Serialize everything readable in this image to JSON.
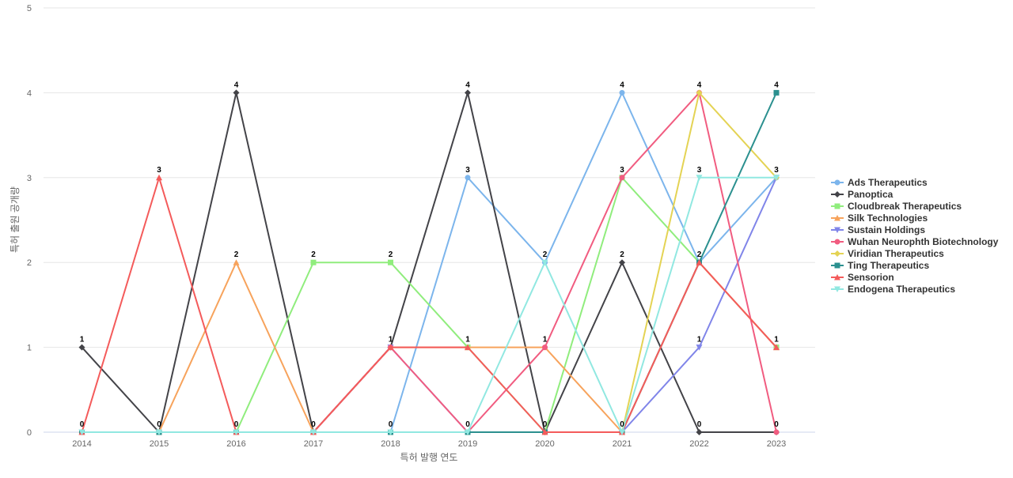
{
  "chart_data": {
    "type": "line",
    "title": "",
    "xlabel": "특허 발행 연도",
    "ylabel": "특허 출원 공개량",
    "ylim": [
      0,
      5
    ],
    "y_ticks": [
      "0",
      "1",
      "2",
      "3",
      "4",
      "5"
    ],
    "categories": [
      "2014",
      "2015",
      "2016",
      "2017",
      "2018",
      "2019",
      "2020",
      "2021",
      "2022",
      "2023"
    ],
    "grid": true,
    "legend_position": "right",
    "series": [
      {
        "name": "Ads Therapeutics",
        "color": "#7cb5ec",
        "marker": "circle",
        "values": [
          0,
          0,
          0,
          0,
          0,
          3,
          2,
          4,
          2,
          3
        ]
      },
      {
        "name": "Panoptica",
        "color": "#434348",
        "marker": "diamond",
        "values": [
          1,
          0,
          4,
          0,
          1,
          4,
          0,
          2,
          0,
          0
        ]
      },
      {
        "name": "Cloudbreak Therapeutics",
        "color": "#90ed7d",
        "marker": "square",
        "values": [
          0,
          0,
          0,
          2,
          2,
          1,
          0,
          3,
          2,
          1
        ]
      },
      {
        "name": "Silk Technologies",
        "color": "#f7a35c",
        "marker": "triangle",
        "values": [
          0,
          0,
          2,
          0,
          1,
          1,
          1,
          0,
          2,
          1
        ]
      },
      {
        "name": "Sustain Holdings",
        "color": "#8085e9",
        "marker": "triangle-down",
        "values": [
          0,
          0,
          0,
          0,
          1,
          0,
          0,
          0,
          1,
          3
        ]
      },
      {
        "name": "Wuhan Neurophth Biotechnology",
        "color": "#f15c80",
        "marker": "circle",
        "values": [
          0,
          0,
          0,
          0,
          1,
          0,
          1,
          3,
          4,
          0
        ]
      },
      {
        "name": "Viridian Therapeutics",
        "color": "#e4d354",
        "marker": "diamond",
        "values": [
          0,
          0,
          0,
          0,
          0,
          0,
          0,
          0,
          4,
          3
        ]
      },
      {
        "name": "Ting Therapeutics",
        "color": "#2b908f",
        "marker": "square",
        "values": [
          0,
          0,
          0,
          0,
          0,
          0,
          0,
          0,
          2,
          4
        ]
      },
      {
        "name": "Sensorion",
        "color": "#f45b5b",
        "marker": "triangle",
        "values": [
          0,
          3,
          0,
          0,
          1,
          1,
          0,
          0,
          2,
          1
        ]
      },
      {
        "name": "Endogena Therapeutics",
        "color": "#91e8e1",
        "marker": "triangle-down",
        "values": [
          0,
          0,
          0,
          0,
          0,
          0,
          2,
          0,
          3,
          3
        ]
      }
    ],
    "data_labels": [
      {
        "x": "2014",
        "y": 1,
        "text": "1"
      },
      {
        "x": "2014",
        "y": 0,
        "text": "0"
      },
      {
        "x": "2015",
        "y": 3,
        "text": "3"
      },
      {
        "x": "2015",
        "y": 0,
        "text": "0"
      },
      {
        "x": "2016",
        "y": 4,
        "text": "4"
      },
      {
        "x": "2016",
        "y": 2,
        "text": "2"
      },
      {
        "x": "2016",
        "y": 0,
        "text": "0"
      },
      {
        "x": "2017",
        "y": 2,
        "text": "2"
      },
      {
        "x": "2017",
        "y": 0,
        "text": "0"
      },
      {
        "x": "2018",
        "y": 2,
        "text": "2"
      },
      {
        "x": "2018",
        "y": 1,
        "text": "1"
      },
      {
        "x": "2018",
        "y": 0,
        "text": "0"
      },
      {
        "x": "2019",
        "y": 4,
        "text": "4"
      },
      {
        "x": "2019",
        "y": 3,
        "text": "3"
      },
      {
        "x": "2019",
        "y": 1,
        "text": "1"
      },
      {
        "x": "2019",
        "y": 0,
        "text": "0"
      },
      {
        "x": "2020",
        "y": 2,
        "text": "2"
      },
      {
        "x": "2020",
        "y": 1,
        "text": "1"
      },
      {
        "x": "2020",
        "y": 0,
        "text": "0"
      },
      {
        "x": "2021",
        "y": 4,
        "text": "4"
      },
      {
        "x": "2021",
        "y": 3,
        "text": "3"
      },
      {
        "x": "2021",
        "y": 2,
        "text": "2"
      },
      {
        "x": "2021",
        "y": 0,
        "text": "0"
      },
      {
        "x": "2022",
        "y": 4,
        "text": "4"
      },
      {
        "x": "2022",
        "y": 3,
        "text": "3"
      },
      {
        "x": "2022",
        "y": 2,
        "text": "2"
      },
      {
        "x": "2022",
        "y": 1,
        "text": "1"
      },
      {
        "x": "2022",
        "y": 0,
        "text": "0"
      },
      {
        "x": "2023",
        "y": 4,
        "text": "4"
      },
      {
        "x": "2023",
        "y": 3,
        "text": "3"
      },
      {
        "x": "2023",
        "y": 1,
        "text": "1"
      },
      {
        "x": "2023",
        "y": 0,
        "text": "0"
      }
    ]
  }
}
